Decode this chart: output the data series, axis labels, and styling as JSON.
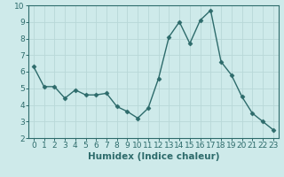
{
  "x": [
    0,
    1,
    2,
    3,
    4,
    5,
    6,
    7,
    8,
    9,
    10,
    11,
    12,
    13,
    14,
    15,
    16,
    17,
    18,
    19,
    20,
    21,
    22,
    23
  ],
  "y": [
    6.3,
    5.1,
    5.1,
    4.4,
    4.9,
    4.6,
    4.6,
    4.7,
    3.9,
    3.6,
    3.2,
    3.8,
    5.6,
    8.1,
    9.0,
    7.7,
    9.1,
    9.7,
    6.6,
    5.8,
    4.5,
    3.5,
    3.0,
    2.5
  ],
  "xlabel": "Humidex (Indice chaleur)",
  "xlim": [
    -0.5,
    23.5
  ],
  "ylim": [
    2,
    10
  ],
  "yticks": [
    2,
    3,
    4,
    5,
    6,
    7,
    8,
    9,
    10
  ],
  "xticks": [
    0,
    1,
    2,
    3,
    4,
    5,
    6,
    7,
    8,
    9,
    10,
    11,
    12,
    13,
    14,
    15,
    16,
    17,
    18,
    19,
    20,
    21,
    22,
    23
  ],
  "line_color": "#2d6b6b",
  "marker": "D",
  "marker_size": 2.5,
  "bg_color": "#ceeaea",
  "grid_color": "#b8d8d8",
  "xlabel_fontsize": 7.5,
  "tick_fontsize": 6.5,
  "linewidth": 1.0
}
